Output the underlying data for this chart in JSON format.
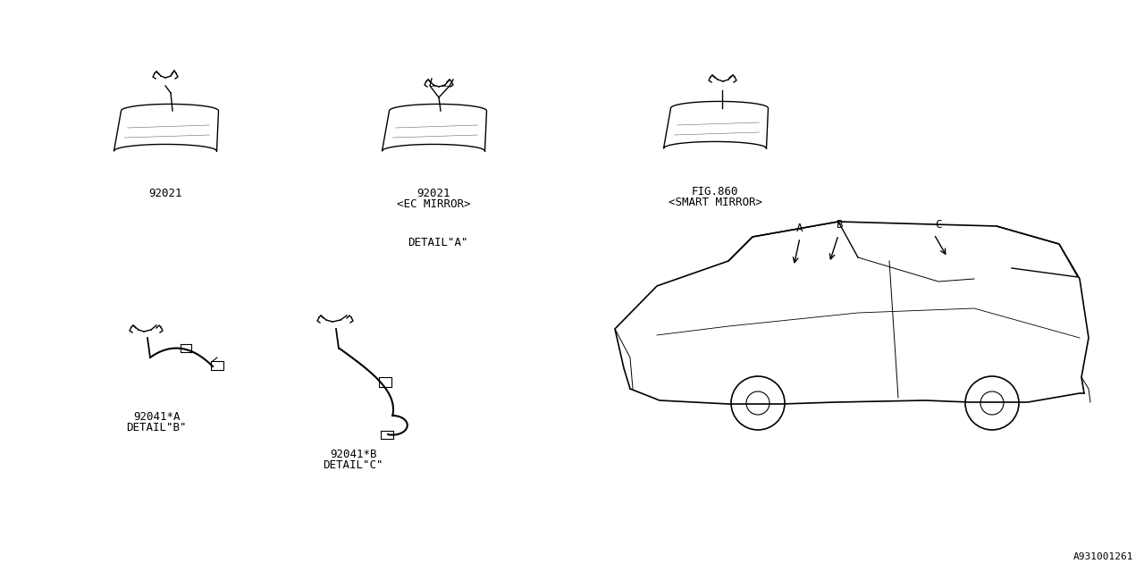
{
  "bg_color": "#ffffff",
  "line_color": "#000000",
  "fig_width": 12.8,
  "fig_height": 6.4,
  "dpi": 100,
  "ref_code": "A931001261",
  "labels": {
    "part1": "92021",
    "part2_num": "92021",
    "part2_sub": "<EC MIRROR>",
    "part3_num": "FIG.860",
    "part3_sub": "<SMART MIRROR>",
    "detail_a": "DETAIL\"A\"",
    "part4_num": "92041*A",
    "part4_sub": "DETAIL\"B\"",
    "part5_num": "92041*B",
    "part5_sub": "DETAIL\"C\"",
    "arrow_a": "A",
    "arrow_b": "B",
    "arrow_c": "C"
  }
}
